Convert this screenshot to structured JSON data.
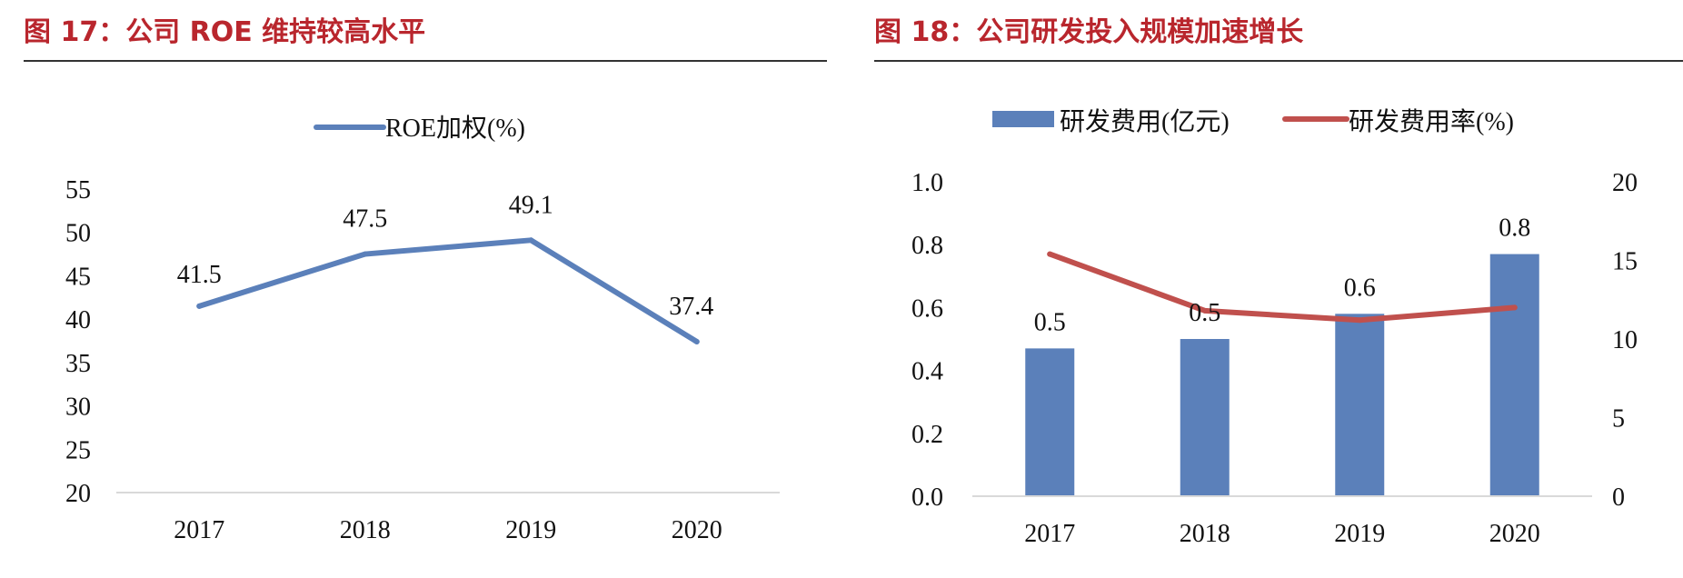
{
  "figures": [
    {
      "title": "图 17：公司 ROE 维持较高水平",
      "chart_data": {
        "type": "line",
        "categories": [
          "2017",
          "2018",
          "2019",
          "2020"
        ],
        "series": [
          {
            "name": "ROE加权(%)",
            "values": [
              41.5,
              47.5,
              49.1,
              37.4
            ],
            "color": "#5b80ba"
          }
        ],
        "data_labels": [
          "41.5",
          "47.5",
          "49.1",
          "37.4"
        ],
        "ylim": [
          20,
          55
        ],
        "yticks": [
          20,
          25,
          30,
          35,
          40,
          45,
          50,
          55
        ],
        "legend_position": "top-center",
        "grid": false
      }
    },
    {
      "title": "图 18：公司研发投入规模加速增长",
      "chart_data": {
        "type": "bar",
        "categories": [
          "2017",
          "2018",
          "2019",
          "2020"
        ],
        "series": [
          {
            "name": "研发费用(亿元)",
            "type": "bar",
            "axis": "left",
            "values": [
              0.47,
              0.5,
              0.58,
              0.77
            ],
            "color": "#5b80ba"
          },
          {
            "name": "研发费用率(%)",
            "type": "line",
            "axis": "right",
            "values": [
              15.4,
              11.8,
              11.2,
              12.0
            ],
            "color": "#c0504d"
          }
        ],
        "data_labels": [
          "0.5",
          "0.5",
          "0.6",
          "0.8"
        ],
        "ylim_left": [
          0,
          1.0
        ],
        "yticks_left": [
          "0.0",
          "0.2",
          "0.4",
          "0.6",
          "0.8",
          "1.0"
        ],
        "ylim_right": [
          0,
          20
        ],
        "yticks_right": [
          "0",
          "5",
          "10",
          "15",
          "20"
        ],
        "legend_position": "top-center",
        "grid": false
      }
    }
  ]
}
